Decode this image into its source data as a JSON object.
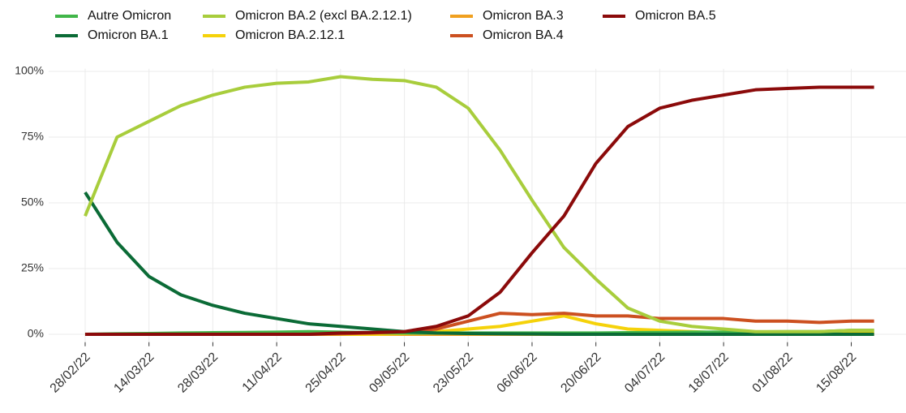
{
  "chart_data": {
    "type": "line",
    "x": [
      "2022-02-28",
      "2022-03-07",
      "2022-03-14",
      "2022-03-21",
      "2022-03-28",
      "2022-04-04",
      "2022-04-11",
      "2022-04-18",
      "2022-04-25",
      "2022-05-02",
      "2022-05-09",
      "2022-05-16",
      "2022-05-23",
      "2022-05-30",
      "2022-06-06",
      "2022-06-13",
      "2022-06-20",
      "2022-06-27",
      "2022-07-04",
      "2022-07-11",
      "2022-07-18",
      "2022-07-25",
      "2022-08-01",
      "2022-08-08",
      "2022-08-15",
      "2022-08-20"
    ],
    "series": [
      {
        "name": "Autre Omicron",
        "color": "#41b649",
        "values": [
          0,
          0.2,
          0.3,
          0.5,
          0.6,
          0.7,
          0.8,
          1,
          0.8,
          0.6,
          0.5,
          0.5,
          0.5,
          0.5,
          0.5,
          0.5,
          0.5,
          0.6,
          0.7,
          0.8,
          0.8,
          0.9,
          1,
          1,
          1.5,
          1.5
        ]
      },
      {
        "name": "Omicron BA.1",
        "color": "#0b6b36",
        "values": [
          54,
          35,
          22,
          15,
          11,
          8,
          6,
          4,
          3,
          2,
          1,
          0.5,
          0.3,
          0.2,
          0.1,
          0,
          0,
          0,
          0,
          0,
          0,
          0,
          0,
          0,
          0,
          0
        ]
      },
      {
        "name": "Omicron BA.2 (excl BA.2.12.1)",
        "color": "#a8cd3c",
        "values": [
          45,
          75,
          81,
          87,
          91,
          94,
          95.5,
          96,
          98,
          97,
          96.5,
          94,
          86,
          70,
          51,
          33,
          21,
          10,
          5,
          3,
          2,
          1,
          1,
          1,
          1.5,
          1.5
        ]
      },
      {
        "name": "Omicron BA.2.12.1",
        "color": "#f5d20a",
        "values": [
          0,
          0,
          0,
          0,
          0,
          0,
          0,
          0,
          0,
          0,
          0.3,
          1,
          2,
          3,
          5,
          7,
          4,
          2,
          1.5,
          1,
          0.5,
          0.3,
          0.3,
          0.3,
          0.3,
          0.3
        ]
      },
      {
        "name": "Omicron BA.3",
        "color": "#f0a020",
        "values": [
          0,
          0,
          0,
          0,
          0,
          0,
          0,
          0,
          0,
          0,
          0,
          0,
          0,
          0,
          0,
          0,
          0,
          0,
          0,
          0,
          0,
          0,
          0,
          0,
          0,
          0
        ]
      },
      {
        "name": "Omicron BA.4",
        "color": "#cc5020",
        "values": [
          0,
          0,
          0,
          0,
          0,
          0,
          0,
          0,
          0.2,
          0.5,
          1,
          2,
          5,
          8,
          7.5,
          8,
          7,
          7,
          6,
          6,
          6,
          5,
          5,
          4.5,
          5,
          5
        ]
      },
      {
        "name": "Omicron BA.5",
        "color": "#8b0a0a",
        "values": [
          0,
          0,
          0,
          0,
          0,
          0,
          0,
          0,
          0.5,
          0.7,
          1,
          3,
          7,
          16,
          31,
          45,
          65,
          79,
          86,
          89,
          91,
          93,
          93.5,
          94,
          94,
          94
        ]
      }
    ],
    "xlim": [
      "2022-02-20",
      "2022-08-27"
    ],
    "xticks": [
      {
        "value": "2022-02-28",
        "label": "28/02/22"
      },
      {
        "value": "2022-03-14",
        "label": "14/03/22"
      },
      {
        "value": "2022-03-28",
        "label": "28/03/22"
      },
      {
        "value": "2022-04-11",
        "label": "11/04/22"
      },
      {
        "value": "2022-04-25",
        "label": "25/04/22"
      },
      {
        "value": "2022-05-09",
        "label": "09/05/22"
      },
      {
        "value": "2022-05-23",
        "label": "23/05/22"
      },
      {
        "value": "2022-06-06",
        "label": "06/06/22"
      },
      {
        "value": "2022-06-20",
        "label": "20/06/22"
      },
      {
        "value": "2022-07-04",
        "label": "04/07/22"
      },
      {
        "value": "2022-07-18",
        "label": "18/07/22"
      },
      {
        "value": "2022-08-01",
        "label": "01/08/22"
      },
      {
        "value": "2022-08-15",
        "label": "15/08/22"
      }
    ],
    "ylim": [
      -3,
      101
    ],
    "yticks": [
      {
        "value": 0,
        "label": "0%"
      },
      {
        "value": 25,
        "label": "25%"
      },
      {
        "value": 50,
        "label": "50%"
      },
      {
        "value": 75,
        "label": "75%"
      },
      {
        "value": 100,
        "label": "100%"
      }
    ],
    "grid": true,
    "legend": "top"
  }
}
